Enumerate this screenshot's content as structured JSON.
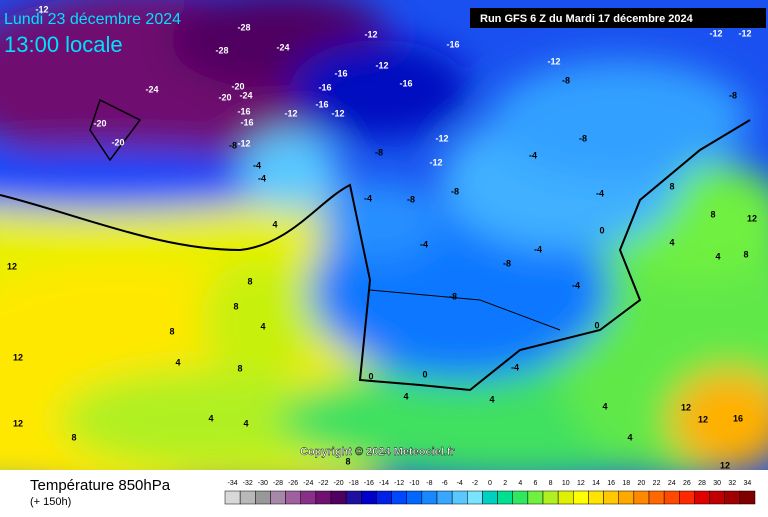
{
  "header": {
    "date": "Lundi 23 décembre 2024",
    "time": "13:00 locale",
    "run": "Run GFS 6 Z du Mardi 17 décembre 2024"
  },
  "copyright": "Copyright © 2024 Meteociel.fr",
  "footer": {
    "title": "Température 850hPa",
    "lead": "(+ 150h)"
  },
  "map_labels": [
    -12,
    -28,
    -24,
    -12,
    -16,
    -12,
    -12,
    -12,
    -28,
    -24,
    -20,
    -20,
    -24,
    -20,
    -20,
    -16,
    -16,
    -16,
    -12,
    -16,
    -12,
    -12,
    -16,
    -16,
    -8,
    -12,
    -4,
    -4,
    -8,
    -8,
    -12,
    -12,
    -8,
    -8,
    -4,
    -4,
    -8,
    -8,
    -4,
    -4,
    -8,
    -4,
    -8,
    -4,
    0,
    4,
    8,
    8,
    4,
    8,
    12,
    12,
    4,
    8,
    8,
    4,
    4,
    8,
    8,
    12,
    4,
    4,
    8,
    12,
    4,
    4,
    4,
    12,
    16,
    12,
    4,
    12,
    8,
    0,
    0,
    -4,
    0
  ],
  "legend": {
    "values": [
      -34,
      -32,
      -30,
      -28,
      -26,
      -24,
      -22,
      -20,
      -18,
      -16,
      -14,
      -12,
      -10,
      -8,
      -6,
      -4,
      -2,
      0,
      2,
      4,
      6,
      8,
      10,
      12,
      14,
      16,
      18,
      20,
      22,
      24,
      26,
      28,
      30,
      32,
      34
    ],
    "colors": [
      "#d8d8d8",
      "#b8b8b8",
      "#989898",
      "#a888a8",
      "#a060a0",
      "#883088",
      "#701070",
      "#500060",
      "#2010a0",
      "#0000c8",
      "#0020e8",
      "#0048ff",
      "#0068ff",
      "#1888ff",
      "#38a8ff",
      "#58c8ff",
      "#78e4ff",
      "#00d0c0",
      "#00e090",
      "#30e860",
      "#70f040",
      "#b0f020",
      "#e0f000",
      "#ffff00",
      "#ffe400",
      "#ffc800",
      "#ffa800",
      "#ff8800",
      "#ff6800",
      "#ff4800",
      "#ff2800",
      "#e00000",
      "#c00000",
      "#a00000",
      "#800000"
    ]
  }
}
